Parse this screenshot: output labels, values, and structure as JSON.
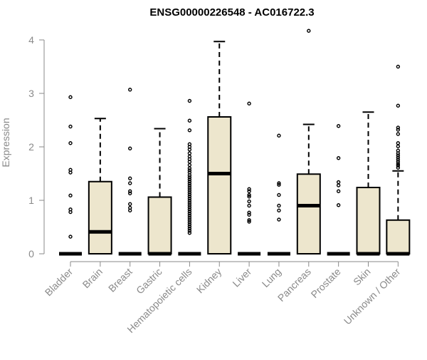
{
  "chart_data": {
    "type": "boxplot",
    "title": "ENSG00000226548 - AC016722.3",
    "xlabel": "",
    "ylabel": "Expression",
    "ylim": [
      0,
      4.2
    ],
    "yticks": [
      0,
      1,
      2,
      3,
      4
    ],
    "colors": {
      "box_fill": "#ede6cd",
      "stroke": "#000000",
      "axis": "#8a8a8a"
    },
    "categories": [
      "Bladder",
      "Brain",
      "Breast",
      "Gastric",
      "Hematopoietic cells",
      "Kidney",
      "Liver",
      "Lung",
      "Pancreas",
      "Prostate",
      "Skin",
      "Unknown / Other"
    ],
    "boxes": [
      {
        "name": "Bladder",
        "min": 0,
        "q1": 0,
        "median": 0,
        "q3": 0,
        "max": 0,
        "outliers": [
          2.93,
          2.38,
          2.07,
          1.57,
          1.52,
          1.09,
          0.83,
          0.78,
          0.32
        ]
      },
      {
        "name": "Brain",
        "min": 0,
        "q1": 0,
        "median": 0.41,
        "q3": 1.35,
        "max": 2.53,
        "outliers": []
      },
      {
        "name": "Breast",
        "min": 0,
        "q1": 0,
        "median": 0,
        "q3": 0,
        "max": 0,
        "outliers": [
          3.07,
          1.97,
          1.41,
          1.32,
          1.17,
          1.13,
          0.93,
          0.86,
          0.81
        ]
      },
      {
        "name": "Gastric",
        "min": 0,
        "q1": 0,
        "median": 0,
        "q3": 1.06,
        "max": 2.34,
        "outliers": []
      },
      {
        "name": "Hematopoietic cells",
        "min": 0,
        "q1": 0,
        "median": 0,
        "q3": 0,
        "max": 0,
        "outliers": [
          2.86,
          2.49,
          2.31,
          2.05,
          2.0,
          1.95,
          1.88,
          1.82,
          1.77,
          1.72,
          1.66,
          1.6,
          1.56,
          1.52,
          1.47,
          1.43,
          1.39,
          1.35,
          1.31,
          1.27,
          1.23,
          1.19,
          1.15,
          1.11,
          1.07,
          1.03,
          0.99,
          0.95,
          0.91,
          0.87,
          0.83,
          0.79,
          0.75,
          0.71,
          0.67,
          0.63,
          0.59,
          0.55,
          0.51,
          0.47,
          0.43,
          0.39
        ]
      },
      {
        "name": "Kidney",
        "min": 0,
        "q1": 0,
        "median": 1.5,
        "q3": 2.56,
        "max": 3.97,
        "outliers": []
      },
      {
        "name": "Liver",
        "min": 0,
        "q1": 0,
        "median": 0,
        "q3": 0,
        "max": 0,
        "outliers": [
          2.81,
          1.21,
          1.17,
          1.1,
          1.07,
          0.98,
          0.9,
          0.77,
          0.73,
          0.63,
          0.6
        ]
      },
      {
        "name": "Lung",
        "min": 0,
        "q1": 0,
        "median": 0,
        "q3": 0,
        "max": 0,
        "outliers": [
          2.21,
          1.32,
          1.29,
          1.1,
          0.9,
          0.81,
          0.64
        ]
      },
      {
        "name": "Pancreas",
        "min": 0,
        "q1": 0,
        "median": 0.9,
        "q3": 1.49,
        "max": 2.42,
        "outliers": [
          4.17
        ]
      },
      {
        "name": "Prostate",
        "min": 0,
        "q1": 0,
        "median": 0,
        "q3": 0,
        "max": 0,
        "outliers": [
          2.39,
          1.79,
          1.34,
          1.28,
          1.17,
          0.91
        ]
      },
      {
        "name": "Skin",
        "min": 0,
        "q1": 0,
        "median": 0,
        "q3": 1.24,
        "max": 2.65,
        "outliers": []
      },
      {
        "name": "Unknown / Other",
        "min": 0,
        "q1": 0,
        "median": 0,
        "q3": 0.63,
        "max": 1.55,
        "outliers": [
          3.5,
          2.77,
          2.36,
          2.32,
          2.24,
          2.07,
          2.01,
          1.93,
          1.88,
          1.84,
          1.8,
          1.76,
          1.72,
          1.68,
          1.65,
          1.61
        ]
      }
    ]
  }
}
